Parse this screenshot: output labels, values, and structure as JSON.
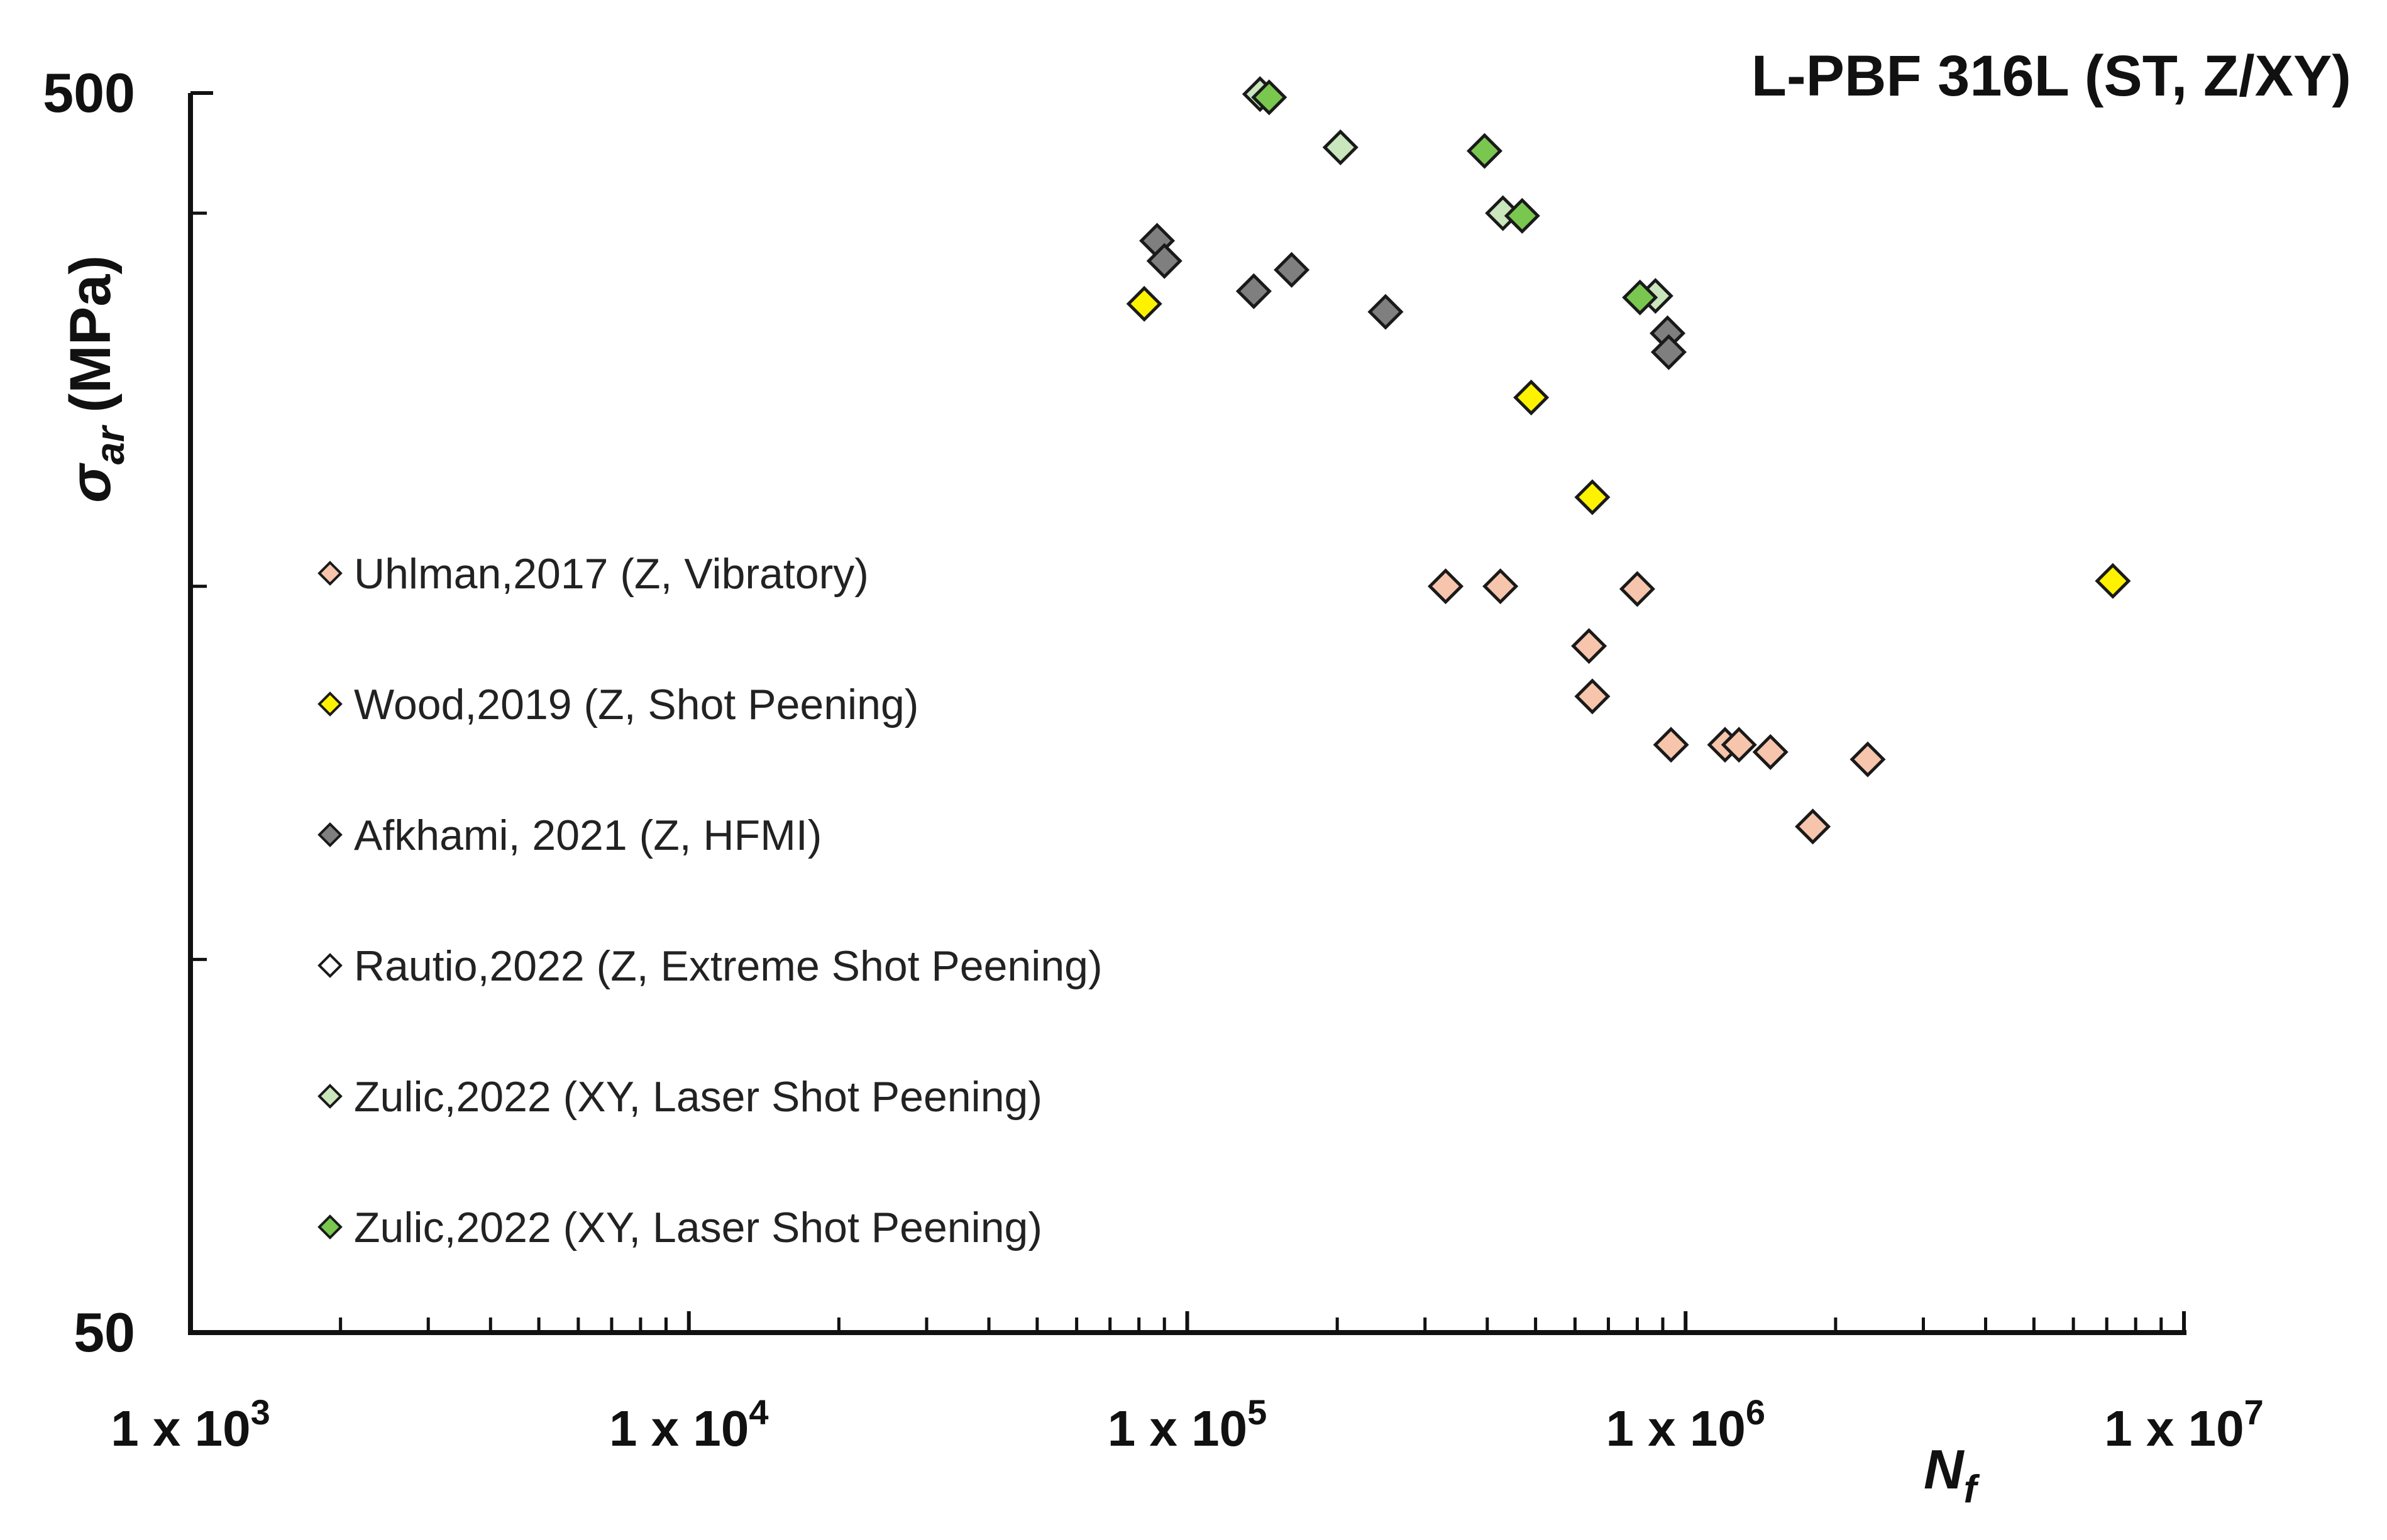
{
  "chart_data": {
    "type": "scatter",
    "title": "L-PBF 316L (ST, Z/XY)",
    "xlabel": "N",
    "xlabel_sub": "f",
    "ylabel_symbol": "σ",
    "ylabel_sub": "ar",
    "ylabel_unit": "(MPa)",
    "xscale": "log",
    "yscale": "log",
    "xlim": [
      1000,
      10000000
    ],
    "ylim": [
      50,
      500
    ],
    "x_ticks": [
      {
        "value": 1000,
        "base": "1 x 10",
        "exp": "3"
      },
      {
        "value": 10000,
        "base": "1 x 10",
        "exp": "4"
      },
      {
        "value": 100000,
        "base": "1 x 10",
        "exp": "5"
      },
      {
        "value": 1000000,
        "base": "1 x 10",
        "exp": "6"
      },
      {
        "value": 10000000,
        "base": "1 x 10",
        "exp": "7"
      }
    ],
    "y_tick_labels": [
      {
        "value": 500,
        "label": "500"
      },
      {
        "value": 50,
        "label": "50"
      }
    ],
    "y_minor_ticks": [
      400,
      200,
      100
    ],
    "grid": false,
    "legend_position": "left-center",
    "series": [
      {
        "name": "Uhlman,2017 (Z, Vibratory)",
        "color": "#F6C5AB",
        "points": [
          [
            330000,
            200
          ],
          [
            425000,
            200
          ],
          [
            800000,
            199
          ],
          [
            640000,
            179
          ],
          [
            650000,
            163
          ],
          [
            935000,
            149
          ],
          [
            1200000,
            149
          ],
          [
            1280000,
            149
          ],
          [
            1480000,
            147
          ],
          [
            2320000,
            145
          ],
          [
            1800000,
            128
          ]
        ]
      },
      {
        "name": "Wood,2019 (Z, Shot Peening)",
        "color": "#FFF200",
        "points": [
          [
            82000,
            338
          ],
          [
            490000,
            284
          ],
          [
            650000,
            236
          ],
          [
            7200000,
            202
          ]
        ]
      },
      {
        "name": "Afkhami, 2021 (Z, HFMI)",
        "color": "#7F7F7F",
        "points": [
          [
            87000,
            380
          ],
          [
            90000,
            366
          ],
          [
            136000,
            346
          ],
          [
            162000,
            360
          ],
          [
            250000,
            333
          ],
          [
            920000,
            320
          ],
          [
            925000,
            309
          ]
        ]
      },
      {
        "name": "Rautio,2022 (Z, Extreme Shot Peening)",
        "color": "#FFFFFF",
        "points": []
      },
      {
        "name": "Zulic,2022 (XY, Laser Shot Peening)",
        "color": "#C9E6BC",
        "points": [
          [
            140000,
            499
          ],
          [
            203000,
            452
          ],
          [
            430000,
            400
          ],
          [
            870000,
            343
          ]
        ]
      },
      {
        "name": "Zulic,2022 (XY, Laser Shot Peening)",
        "color": "#7AC74F",
        "points": [
          [
            146000,
            496
          ],
          [
            395000,
            449
          ],
          [
            470000,
            398
          ],
          [
            810000,
            342
          ]
        ]
      }
    ]
  }
}
